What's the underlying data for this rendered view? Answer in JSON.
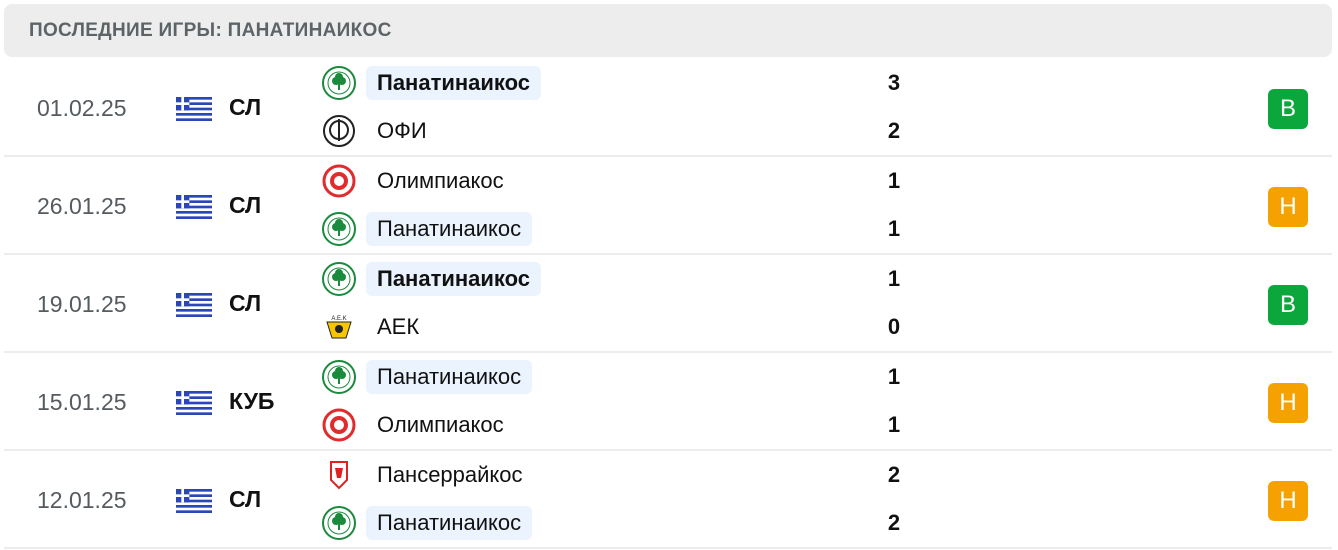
{
  "title": "ПОСЛЕДНИЕ ИГРЫ: ПАНАТИНАИКОС",
  "colors": {
    "win": "#0ca73c",
    "draw": "#f5a100",
    "highlight": "#eaf3fe"
  },
  "matches": [
    {
      "date": "01.02.25",
      "competition": "СЛ",
      "home": {
        "name": "Панатинаикос",
        "logo": "panathinaikos",
        "score": "3",
        "highlighted": true,
        "bold": true
      },
      "away": {
        "name": "ОФИ",
        "logo": "ofi",
        "score": "2",
        "highlighted": false,
        "bold": false
      },
      "result": "В",
      "result_type": "win"
    },
    {
      "date": "26.01.25",
      "competition": "СЛ",
      "home": {
        "name": "Олимпиакос",
        "logo": "olympiacos",
        "score": "1",
        "highlighted": false,
        "bold": false
      },
      "away": {
        "name": "Панатинаикос",
        "logo": "panathinaikos",
        "score": "1",
        "highlighted": true,
        "bold": false
      },
      "result": "Н",
      "result_type": "draw"
    },
    {
      "date": "19.01.25",
      "competition": "СЛ",
      "home": {
        "name": "Панатинаикос",
        "logo": "panathinaikos",
        "score": "1",
        "highlighted": true,
        "bold": true
      },
      "away": {
        "name": "АЕК",
        "logo": "aek",
        "score": "0",
        "highlighted": false,
        "bold": false
      },
      "result": "В",
      "result_type": "win"
    },
    {
      "date": "15.01.25",
      "competition": "КУБ",
      "home": {
        "name": "Панатинаикос",
        "logo": "panathinaikos",
        "score": "1",
        "highlighted": true,
        "bold": false
      },
      "away": {
        "name": "Олимпиакос",
        "logo": "olympiacos",
        "score": "1",
        "highlighted": false,
        "bold": false
      },
      "result": "Н",
      "result_type": "draw"
    },
    {
      "date": "12.01.25",
      "competition": "СЛ",
      "home": {
        "name": "Пансеррайкос",
        "logo": "panserraikos",
        "score": "2",
        "highlighted": false,
        "bold": false
      },
      "away": {
        "name": "Панатинаикос",
        "logo": "panathinaikos",
        "score": "2",
        "highlighted": true,
        "bold": false
      },
      "result": "Н",
      "result_type": "draw"
    }
  ]
}
